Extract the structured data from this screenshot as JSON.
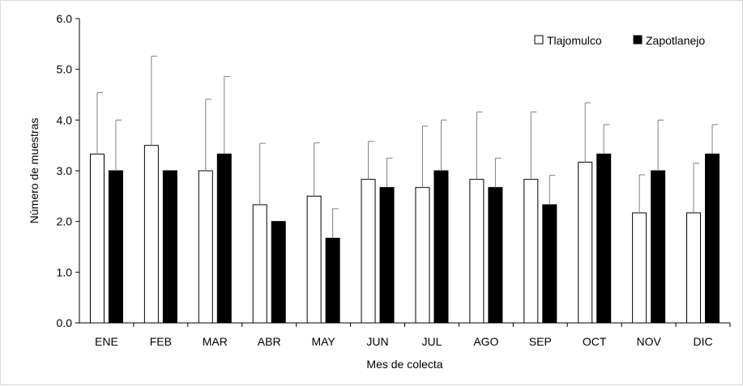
{
  "chart_data": {
    "type": "bar",
    "xlabel": "Mes de colecta",
    "ylabel": "Número de muestras",
    "ylim": [
      0,
      6
    ],
    "yticks": [
      "0.0",
      "1.0",
      "2.0",
      "3.0",
      "4.0",
      "5.0",
      "6.0"
    ],
    "categories": [
      "ENE",
      "FEB",
      "MAR",
      "ABR",
      "MAY",
      "JUN",
      "JUL",
      "AGO",
      "SEP",
      "OCT",
      "NOV",
      "DIC"
    ],
    "series": [
      {
        "name": "Tlajomulco",
        "fill": "#ffffff",
        "values": [
          3.33,
          3.5,
          3.0,
          2.33,
          2.5,
          2.83,
          2.67,
          2.83,
          2.83,
          3.17,
          2.17,
          2.17
        ],
        "error": [
          1.21,
          1.76,
          1.41,
          1.21,
          1.05,
          0.75,
          1.21,
          1.33,
          1.33,
          1.17,
          0.75,
          0.98
        ]
      },
      {
        "name": "Zapotlanejo",
        "fill": "#000000",
        "values": [
          3.0,
          3.0,
          3.33,
          2.0,
          1.67,
          2.67,
          3.0,
          2.67,
          2.33,
          3.33,
          3.0,
          3.33
        ],
        "error": [
          1.0,
          0.0,
          1.53,
          0.0,
          0.58,
          0.58,
          1.0,
          0.58,
          0.58,
          0.58,
          1.0,
          0.58
        ]
      }
    ],
    "grid": false,
    "legend_position": "top-right"
  }
}
